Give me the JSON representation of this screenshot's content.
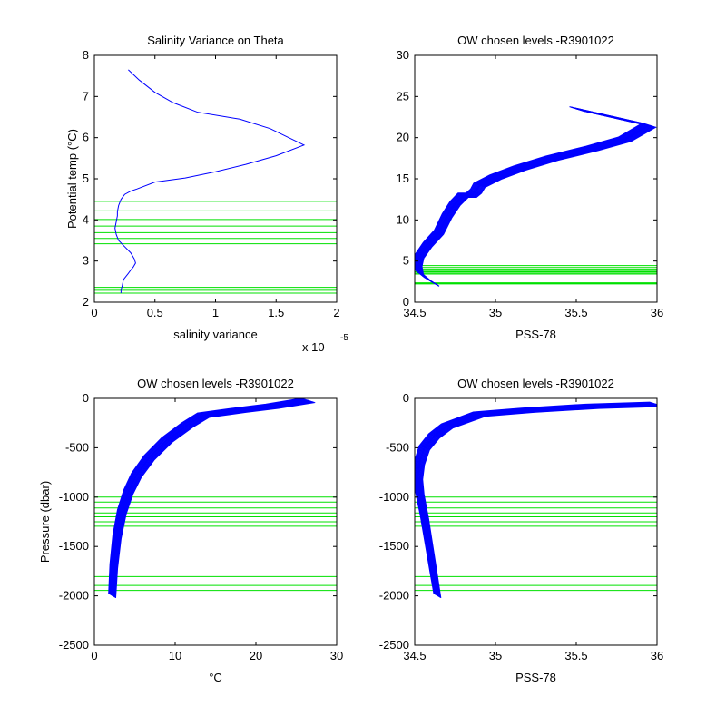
{
  "figure": {
    "colors": {
      "profile": "#0000ff",
      "level": "#00e000",
      "axis": "#000000",
      "background": "#ffffff"
    }
  },
  "chart_data": [
    {
      "id": "p1",
      "type": "line",
      "title": "Salinity Variance on Theta",
      "xlabel": "salinity variance",
      "ylabel": "Potential temp (°C)",
      "xlim": [
        0,
        2
      ],
      "ylim": [
        2,
        8
      ],
      "xticks": [
        0,
        0.5,
        1,
        1.5,
        2
      ],
      "xtick_labels": [
        "0",
        "0.5",
        "1",
        "1.5",
        "2"
      ],
      "yticks": [
        2,
        3,
        4,
        5,
        6,
        7,
        8
      ],
      "ytick_labels": [
        "2",
        "3",
        "4",
        "5",
        "6",
        "7",
        "8"
      ],
      "x_multiplier": "x 10",
      "x_multiplier_exp": "-5",
      "series": [
        {
          "x": [
            0.22,
            0.22,
            0.23,
            0.24,
            0.28,
            0.3,
            0.32,
            0.34,
            0.33,
            0.3,
            0.25,
            0.2,
            0.18,
            0.17,
            0.18,
            0.19,
            0.19,
            0.2,
            0.22,
            0.25,
            0.3,
            0.35,
            0.5,
            0.75,
            1.0,
            1.25,
            1.5,
            1.73,
            1.45,
            1.2,
            0.85,
            0.65,
            0.5,
            0.37,
            0.28
          ],
          "y": [
            2.22,
            2.3,
            2.4,
            2.55,
            2.7,
            2.78,
            2.85,
            2.95,
            3.05,
            3.2,
            3.35,
            3.5,
            3.65,
            3.8,
            3.95,
            4.1,
            4.2,
            4.35,
            4.5,
            4.62,
            4.7,
            4.75,
            4.92,
            5.02,
            5.17,
            5.35,
            5.56,
            5.82,
            6.22,
            6.45,
            6.62,
            6.85,
            7.1,
            7.4,
            7.65
          ]
        }
      ],
      "hlines": [
        2.22,
        2.29,
        2.36,
        3.42,
        3.55,
        3.69,
        3.85,
        4.01,
        4.22,
        4.45
      ]
    },
    {
      "id": "p2",
      "type": "line",
      "title": "OW chosen levels -R3901022",
      "xlabel": "PSS-78",
      "ylabel": "",
      "xlim": [
        34.5,
        36
      ],
      "ylim": [
        0,
        30
      ],
      "xticks": [
        34.5,
        35,
        35.5,
        36
      ],
      "xtick_labels": [
        "34.5",
        "35",
        "35.5",
        "36"
      ],
      "yticks": [
        0,
        5,
        10,
        15,
        20,
        25,
        30
      ],
      "ytick_labels": [
        "0",
        "5",
        "10",
        "15",
        "20",
        "25",
        "30"
      ],
      "series": [
        {
          "x": [
            34.63,
            34.58,
            34.53,
            34.52,
            34.53,
            34.58,
            34.65,
            34.7,
            34.75,
            34.8,
            34.85,
            34.88,
            34.9,
            35.0,
            35.15,
            35.35,
            35.6,
            35.8,
            35.95,
            35.5
          ],
          "y": [
            2.2,
            2.8,
            3.6,
            4.6,
            5.6,
            7.0,
            8.5,
            10.5,
            12.0,
            13.0,
            13.0,
            13.5,
            14.2,
            15.2,
            16.3,
            17.5,
            18.7,
            19.8,
            21.5,
            23.5
          ]
        }
      ],
      "hlines": [
        2.22,
        2.29,
        2.36,
        3.42,
        3.55,
        3.69,
        3.85,
        4.01,
        4.22,
        4.45
      ]
    },
    {
      "id": "p3",
      "type": "line",
      "title": "OW chosen levels -R3901022",
      "xlabel": "°C",
      "ylabel": "Pressure (dbar)",
      "xlim": [
        0,
        30
      ],
      "ylim": [
        -2500,
        0
      ],
      "xticks": [
        0,
        10,
        20,
        30
      ],
      "xtick_labels": [
        "0",
        "10",
        "20",
        "30"
      ],
      "yticks": [
        -2500,
        -2000,
        -1500,
        -1000,
        -500,
        0
      ],
      "ytick_labels": [
        "-2500",
        "-2000",
        "-1500",
        "-1000",
        "-500",
        "0"
      ],
      "series": [
        {
          "x": [
            2.2,
            2.4,
            2.8,
            3.4,
            4.2,
            5.2,
            6.8,
            9.0,
            11.5,
            13.5,
            18.0,
            22.0,
            26.5
          ],
          "y": [
            -2000,
            -1700,
            -1400,
            -1150,
            -950,
            -780,
            -600,
            -420,
            -270,
            -170,
            -120,
            -80,
            -20
          ]
        }
      ],
      "hlines": [
        -1000,
        -1050,
        -1110,
        -1160,
        -1200,
        -1250,
        -1295,
        -1805,
        -1895,
        -1945
      ]
    },
    {
      "id": "p4",
      "type": "line",
      "title": "OW chosen levels -R3901022",
      "xlabel": "PSS-78",
      "ylabel": "",
      "xlim": [
        34.5,
        36
      ],
      "ylim": [
        -2500,
        0
      ],
      "xticks": [
        34.5,
        35,
        35.5,
        36
      ],
      "xtick_labels": [
        "34.5",
        "35",
        "35.5",
        "36"
      ],
      "yticks": [
        -2500,
        -2000,
        -1500,
        -1000,
        -500,
        0
      ],
      "ytick_labels": [
        "-2500",
        "-2000",
        "-1500",
        "-1000",
        "-500",
        "0"
      ],
      "series": [
        {
          "x": [
            34.64,
            34.62,
            34.59,
            34.56,
            34.53,
            34.52,
            34.53,
            34.56,
            34.62,
            34.7,
            34.8,
            34.9,
            35.2,
            35.6,
            36.0
          ],
          "y": [
            -2000,
            -1800,
            -1500,
            -1200,
            -950,
            -800,
            -650,
            -500,
            -380,
            -280,
            -220,
            -160,
            -120,
            -80,
            -60
          ]
        }
      ],
      "hlines": [
        -1000,
        -1050,
        -1110,
        -1160,
        -1200,
        -1250,
        -1295,
        -1805,
        -1895,
        -1945
      ]
    }
  ]
}
